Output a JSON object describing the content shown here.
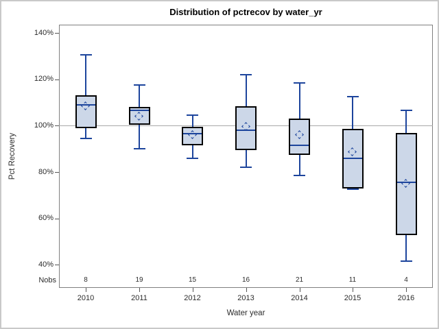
{
  "title": "Distribution of pctrecov by water_yr",
  "chart_data": {
    "type": "boxplot",
    "title": "Distribution of pctrecov by water_yr",
    "xlabel": "Water year",
    "ylabel": "Pct Recovery",
    "nobs_label": "Nobs",
    "categories": [
      "2010",
      "2011",
      "2012",
      "2013",
      "2014",
      "2015",
      "2016"
    ],
    "y_ticks": [
      {
        "value": 140,
        "label": "140%"
      },
      {
        "value": 120,
        "label": "120%"
      },
      {
        "value": 100,
        "label": "100%"
      },
      {
        "value": 80,
        "label": "80%"
      },
      {
        "value": 60,
        "label": "60%"
      },
      {
        "value": 40,
        "label": "40%"
      }
    ],
    "ylim": [
      30,
      143.5
    ],
    "reference_line": 100,
    "grid": false,
    "legend": "none",
    "series": [
      {
        "category": "2010",
        "nobs": 8,
        "whisker_low": 94.5,
        "q1": 99,
        "median": 109,
        "mean": 108.5,
        "q3": 113,
        "whisker_high": 130.5
      },
      {
        "category": "2011",
        "nobs": 19,
        "whisker_low": 90,
        "q1": 100.5,
        "median": 106.5,
        "mean": 104,
        "q3": 108,
        "whisker_high": 117.5
      },
      {
        "category": "2012",
        "nobs": 15,
        "whisker_low": 86,
        "q1": 91.5,
        "median": 96.5,
        "mean": 96,
        "q3": 99.5,
        "whisker_high": 104.5
      },
      {
        "category": "2013",
        "nobs": 16,
        "whisker_low": 82,
        "q1": 89.5,
        "median": 98,
        "mean": 99.5,
        "q3": 108.5,
        "whisker_high": 122
      },
      {
        "category": "2014",
        "nobs": 21,
        "whisker_low": 78.5,
        "q1": 87.5,
        "median": 91.5,
        "mean": 96,
        "q3": 103,
        "whisker_high": 118.5
      },
      {
        "category": "2015",
        "nobs": 11,
        "whisker_low": 72.5,
        "q1": 73,
        "median": 86,
        "mean": 88.5,
        "q3": 98.5,
        "whisker_high": 112.5
      },
      {
        "category": "2016",
        "nobs": 4,
        "whisker_low": 41.5,
        "q1": 53,
        "median": 75.5,
        "mean": 75,
        "q3": 97,
        "whisker_high": 106.5
      }
    ]
  },
  "colors": {
    "box_fill": "#ccd7e8",
    "box_border": "#000000",
    "whisker_blue": "#1c449c",
    "reference_line": "#a8a8a8",
    "frame": "#7f7f7f",
    "tick": "#555555",
    "text": "#2b2b2b",
    "background": "#ffffff",
    "outer_border": "#c9c9c9"
  }
}
